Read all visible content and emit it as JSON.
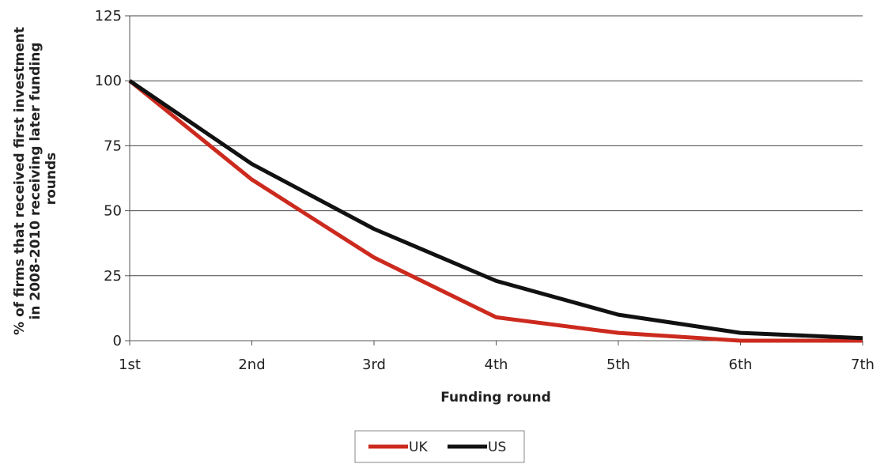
{
  "chart_data": {
    "type": "line",
    "categories": [
      "1st",
      "2nd",
      "3rd",
      "4th",
      "5th",
      "6th",
      "7th"
    ],
    "series": [
      {
        "name": "UK",
        "color": "#cc2a1e",
        "values": [
          100,
          62,
          32,
          9,
          3,
          0,
          0
        ]
      },
      {
        "name": "US",
        "color": "#111111",
        "values": [
          100,
          68,
          43,
          23,
          10,
          3,
          1
        ]
      }
    ],
    "ylim": [
      0,
      125
    ],
    "yticks": [
      0,
      25,
      50,
      75,
      100,
      125
    ],
    "xlabel": "Funding round",
    "ylabel_lines": [
      "% of firms that received first investment",
      "in 2008-2010  receiving later funding",
      "rounds"
    ],
    "grid": "horizontal",
    "legend_position": "bottom-center"
  }
}
